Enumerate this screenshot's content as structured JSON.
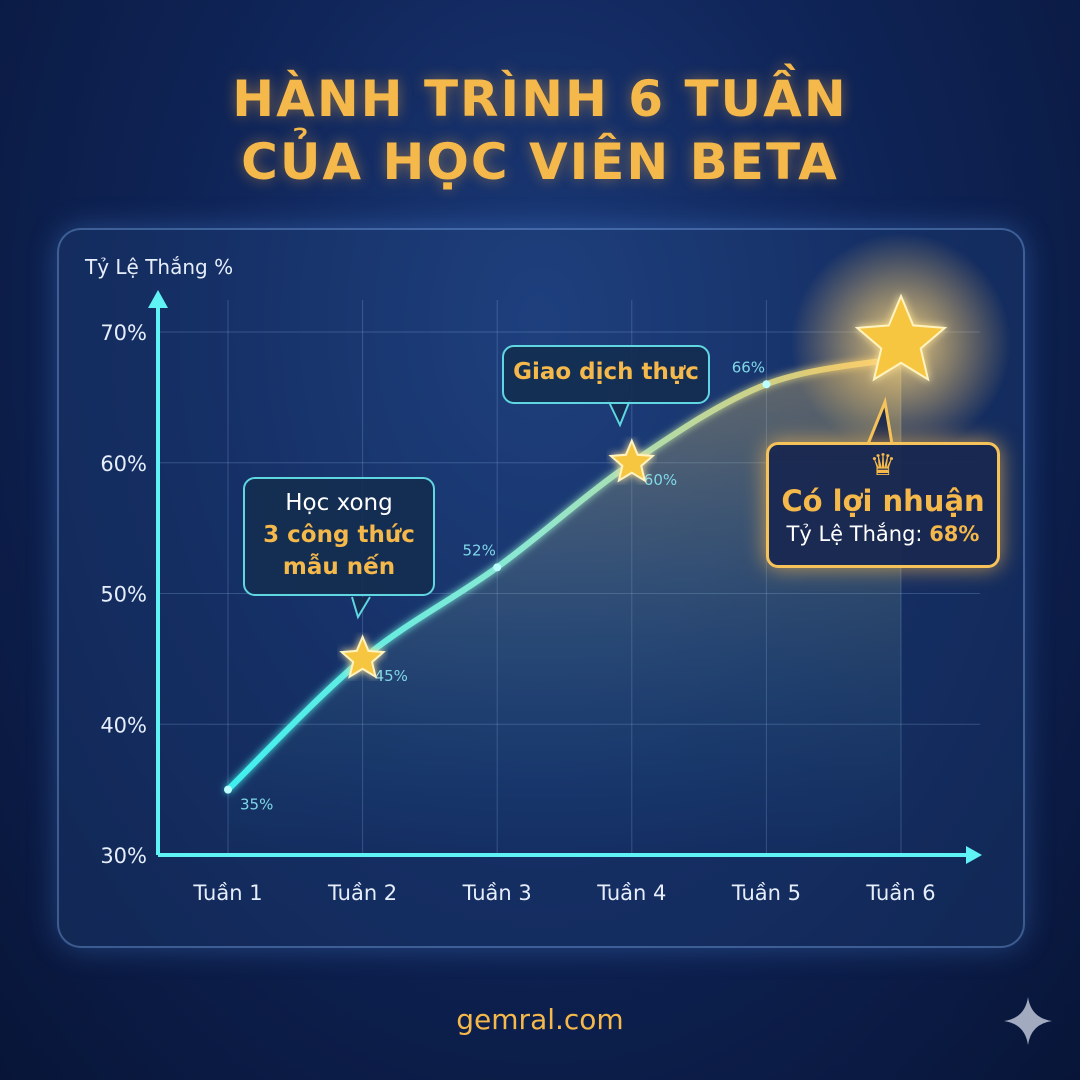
{
  "title": {
    "line1": "HÀNH TRÌNH 6 TUẦN",
    "line2": "CỦA HỌC VIÊN BETA"
  },
  "chart_data": {
    "type": "line",
    "ylabel": "Tỷ Lệ Thắng %",
    "xlabel": "",
    "categories": [
      "Tuần 1",
      "Tuần 2",
      "Tuần 3",
      "Tuần 4",
      "Tuần 5",
      "Tuần 6"
    ],
    "values": [
      35,
      45,
      52,
      60,
      66,
      68
    ],
    "data_labels": [
      "35%",
      "45%",
      "52%",
      "60%",
      "66%",
      ""
    ],
    "ylim": [
      30,
      70
    ],
    "yticks": [
      30,
      40,
      50,
      60,
      70
    ],
    "ytick_labels": [
      "30%",
      "40%",
      "50%",
      "60%",
      "70%"
    ],
    "grid": true,
    "markers": "star on Tuần 2, Tuần 4, Tuần 6",
    "colors": {
      "line_start": "#3ff0f0",
      "line_end": "#f5c35a",
      "accent": "#f5b84a"
    }
  },
  "annotations": {
    "week2": {
      "line1": "Học xong",
      "line2": "3 công thức",
      "line3": "mẫu nến"
    },
    "week4": {
      "text": "Giao dịch thực"
    },
    "week6": {
      "title": "Có lợi nhuận",
      "label": "Tỷ Lệ Thắng:",
      "value": "68%",
      "icon": "crown-icon"
    }
  },
  "footer": {
    "site": "gemral.com",
    "icon": "sparkle-icon"
  }
}
